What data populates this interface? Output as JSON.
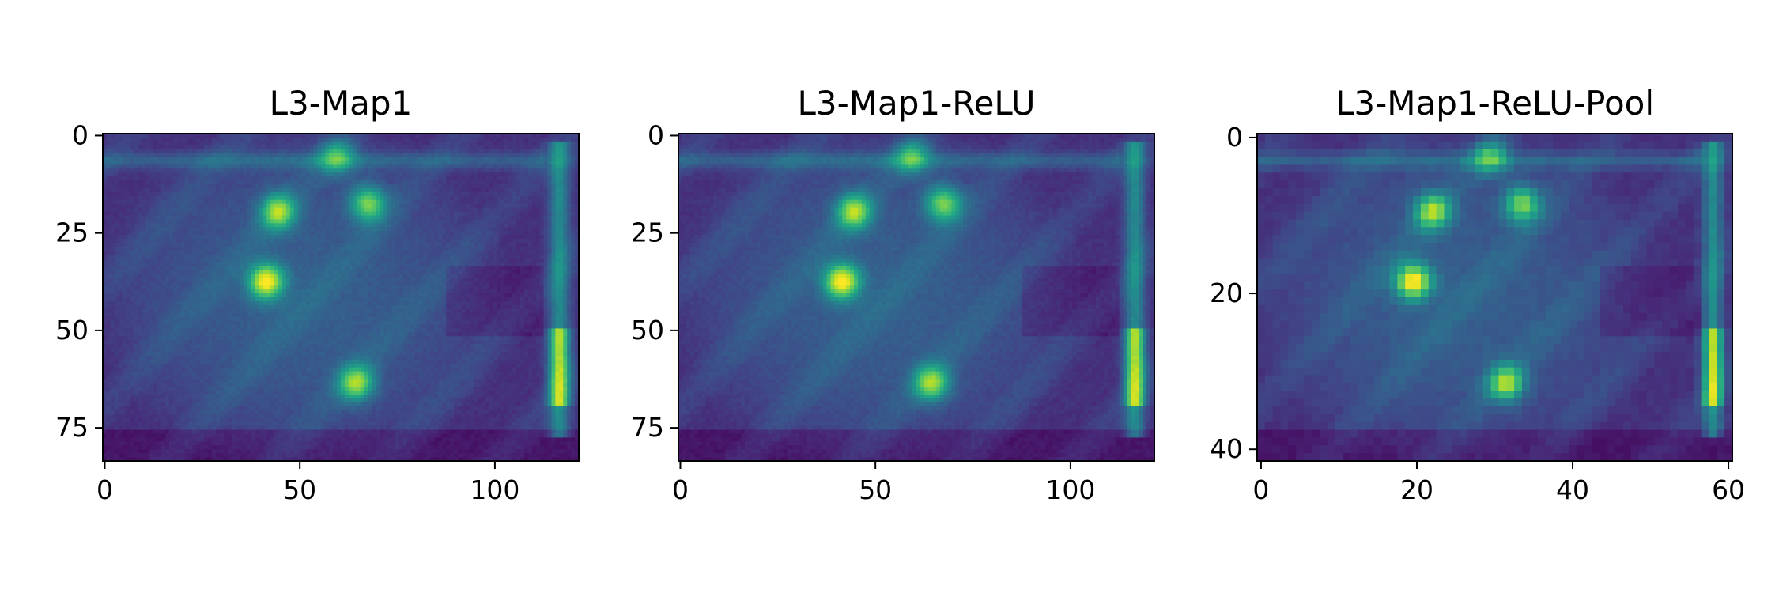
{
  "chart_data": [
    {
      "type": "heatmap",
      "title": "L3-Map1",
      "colormap": "viridis",
      "grid": false,
      "xlim": [
        -0.5,
        121.5
      ],
      "ylim": [
        83.5,
        -0.5
      ],
      "xticks": [
        0,
        50,
        100
      ],
      "yticks": [
        0,
        25,
        50,
        75
      ],
      "xtick_labels": [
        "0",
        "50",
        "100"
      ],
      "ytick_labels": [
        "0",
        "25",
        "50",
        "75"
      ],
      "image_width": 122,
      "image_height": 84,
      "features": {
        "top_band": {
          "y": 7,
          "value": 0.32
        },
        "right_column": {
          "x": 117,
          "y_range": [
            2,
            78
          ],
          "value": 0.6
        },
        "right_column_peak": {
          "x": 117,
          "y_range": [
            50,
            70
          ],
          "value": 0.85
        },
        "hotspots": [
          {
            "x": 42,
            "y": 38,
            "value": 1.0
          },
          {
            "x": 45,
            "y": 20,
            "value": 0.8
          },
          {
            "x": 68,
            "y": 18,
            "value": 0.75
          },
          {
            "x": 65,
            "y": 64,
            "value": 0.8
          },
          {
            "x": 60,
            "y": 6,
            "value": 0.55
          }
        ]
      }
    },
    {
      "type": "heatmap",
      "title": "L3-Map1-ReLU",
      "colormap": "viridis",
      "grid": false,
      "xlim": [
        -0.5,
        121.5
      ],
      "ylim": [
        83.5,
        -0.5
      ],
      "xticks": [
        0,
        50,
        100
      ],
      "yticks": [
        0,
        25,
        50,
        75
      ],
      "xtick_labels": [
        "0",
        "50",
        "100"
      ],
      "ytick_labels": [
        "0",
        "25",
        "50",
        "75"
      ],
      "image_width": 122,
      "image_height": 84,
      "features": {
        "top_band": {
          "y": 7,
          "value": 0.32
        },
        "right_column": {
          "x": 117,
          "y_range": [
            2,
            78
          ],
          "value": 0.6
        },
        "right_column_peak": {
          "x": 117,
          "y_range": [
            50,
            70
          ],
          "value": 0.85
        },
        "hotspots": [
          {
            "x": 42,
            "y": 38,
            "value": 1.0
          },
          {
            "x": 45,
            "y": 20,
            "value": 0.8
          },
          {
            "x": 68,
            "y": 18,
            "value": 0.75
          },
          {
            "x": 65,
            "y": 64,
            "value": 0.8
          },
          {
            "x": 60,
            "y": 6,
            "value": 0.55
          }
        ]
      }
    },
    {
      "type": "heatmap",
      "title": "L3-Map1-ReLU-Pool",
      "colormap": "viridis",
      "grid": false,
      "xlim": [
        -0.5,
        60.5
      ],
      "ylim": [
        41.5,
        -0.5
      ],
      "xticks": [
        0,
        20,
        40,
        60
      ],
      "yticks": [
        0,
        20,
        40
      ],
      "xtick_labels": [
        "0",
        "20",
        "40",
        "60"
      ],
      "ytick_labels": [
        "0",
        "20",
        "40"
      ],
      "image_width": 61,
      "image_height": 42,
      "features": {
        "top_band": {
          "y": 3.5,
          "value": 0.32
        },
        "right_column": {
          "x": 58.5,
          "y_range": [
            1,
            39
          ],
          "value": 0.6
        },
        "right_column_peak": {
          "x": 58.5,
          "y_range": [
            25,
            35
          ],
          "value": 0.85
        },
        "hotspots": [
          {
            "x": 20,
            "y": 19,
            "value": 1.0
          },
          {
            "x": 22.5,
            "y": 10,
            "value": 0.8
          },
          {
            "x": 34,
            "y": 9,
            "value": 0.75
          },
          {
            "x": 32,
            "y": 32,
            "value": 0.8
          },
          {
            "x": 30,
            "y": 3,
            "value": 0.55
          }
        ]
      }
    }
  ]
}
